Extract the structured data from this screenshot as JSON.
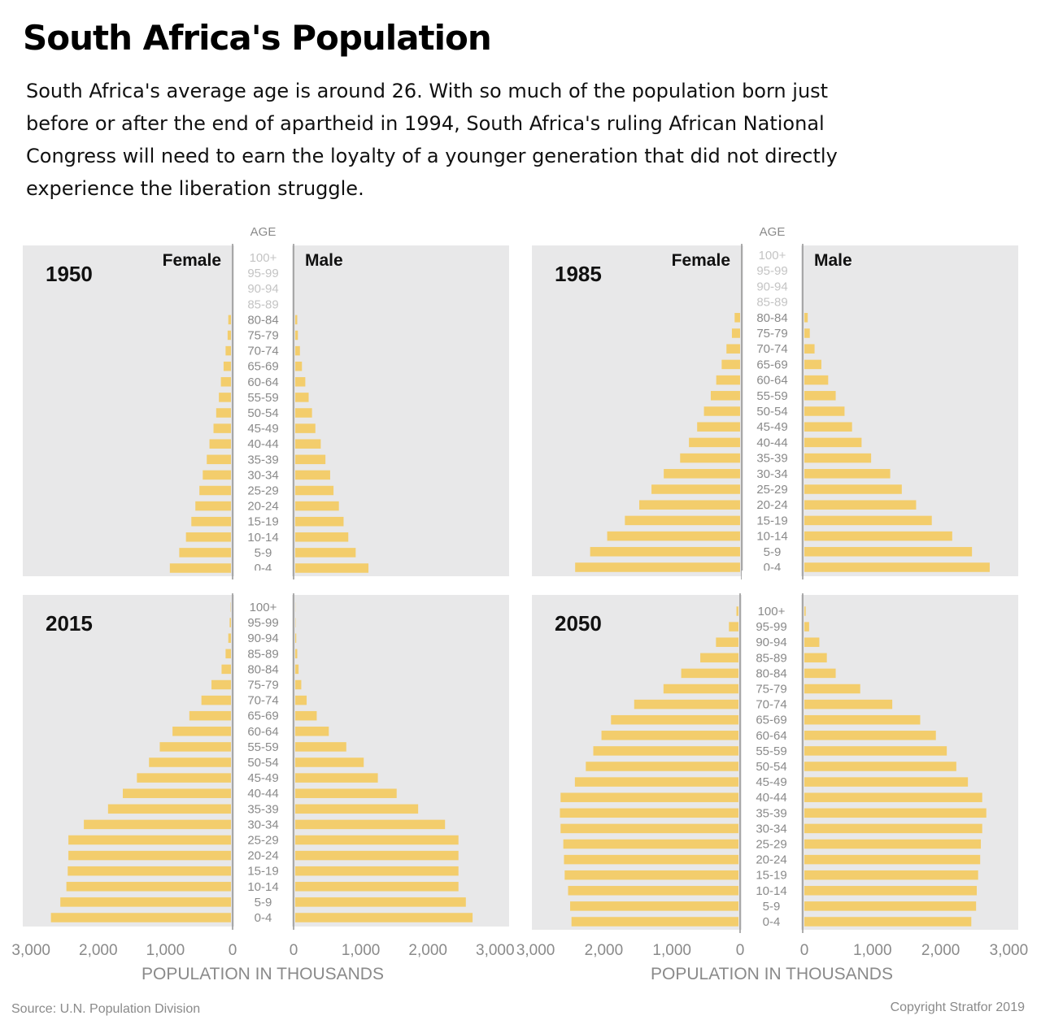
{
  "title": "South Africa's Population",
  "subtitle": "South Africa's average age is around 26. With so much of the population born just before or after the end of apartheid in 1994, South Africa's ruling African National Congress will need to earn the loyalty of a younger generation that did not directly experience the liberation struggle.",
  "source": "Source: U.N. Population Division",
  "copyright": "Copyright Stratfor 2019",
  "colors": {
    "bar": "#f3cd6c",
    "panel": "#e8e8e9",
    "axis": "#8c8c8c",
    "label": "#8a8a8a"
  },
  "chart_data": [
    {
      "type": "bar",
      "title": "1950",
      "age_header": "AGE",
      "left_label": "Female",
      "right_label": "Male",
      "xlabel": "POPULATION IN THOUSANDS",
      "xlim": [
        0,
        3000
      ],
      "xticks": [
        "3,000",
        "2,000",
        "1,000",
        "0"
      ],
      "categories": [
        "100+",
        "95-99",
        "90-94",
        "85-89",
        "80-84",
        "75-79",
        "70-74",
        "65-69",
        "60-64",
        "55-59",
        "50-54",
        "45-49",
        "40-44",
        "35-39",
        "30-34",
        "25-29",
        "20-24",
        "15-19",
        "10-14",
        "5-9",
        "0-4"
      ],
      "series": [
        {
          "name": "Female",
          "values": [
            0,
            0,
            0,
            0,
            40,
            50,
            80,
            110,
            150,
            180,
            220,
            260,
            320,
            360,
            420,
            470,
            530,
            590,
            670,
            770,
            910
          ]
        },
        {
          "name": "Male",
          "values": [
            0,
            0,
            0,
            0,
            30,
            40,
            70,
            100,
            150,
            200,
            250,
            300,
            380,
            450,
            520,
            570,
            650,
            720,
            790,
            900,
            1090
          ]
        }
      ]
    },
    {
      "type": "bar",
      "title": "1985",
      "age_header": "AGE",
      "left_label": "Female",
      "right_label": "Male",
      "xlabel": "POPULATION IN THOUSANDS",
      "xlim": [
        0,
        3000
      ],
      "xticks": [
        "0",
        "1,000",
        "2,000",
        "3,000"
      ],
      "categories": [
        "100+",
        "95-99",
        "90-94",
        "85-89",
        "80-84",
        "75-79",
        "70-74",
        "65-69",
        "60-64",
        "55-59",
        "50-54",
        "45-49",
        "40-44",
        "35-39",
        "30-34",
        "25-29",
        "20-24",
        "15-19",
        "10-14",
        "5-9",
        "0-4"
      ],
      "series": [
        {
          "name": "Female",
          "values": [
            0,
            0,
            0,
            0,
            80,
            120,
            200,
            270,
            350,
            430,
            530,
            630,
            750,
            880,
            1120,
            1300,
            1480,
            1690,
            1950,
            2200,
            2420
          ]
        },
        {
          "name": "Male",
          "values": [
            0,
            0,
            0,
            0,
            50,
            80,
            150,
            250,
            350,
            460,
            590,
            700,
            840,
            980,
            1260,
            1430,
            1640,
            1870,
            2170,
            2460,
            2720
          ]
        }
      ]
    },
    {
      "type": "bar",
      "title": "2015",
      "age_header": "",
      "left_label": "",
      "right_label": "",
      "xlabel": "",
      "xlim": [
        0,
        3000
      ],
      "xticks": [],
      "categories": [
        "100+",
        "95-99",
        "90-94",
        "85-89",
        "80-84",
        "75-79",
        "70-74",
        "65-69",
        "60-64",
        "55-59",
        "50-54",
        "45-49",
        "40-44",
        "35-39",
        "30-34",
        "25-29",
        "20-24",
        "15-19",
        "10-14",
        "5-9",
        "0-4"
      ],
      "series": [
        {
          "name": "Female",
          "values": [
            5,
            20,
            40,
            80,
            140,
            290,
            440,
            620,
            870,
            1060,
            1220,
            1400,
            1610,
            1830,
            2190,
            2420,
            2420,
            2430,
            2450,
            2540,
            2680
          ]
        },
        {
          "name": "Male",
          "values": [
            2,
            5,
            15,
            30,
            50,
            90,
            170,
            320,
            500,
            760,
            1020,
            1230,
            1510,
            1830,
            2230,
            2430,
            2430,
            2430,
            2430,
            2540,
            2640
          ]
        }
      ]
    },
    {
      "type": "bar",
      "title": "2050",
      "age_header": "",
      "left_label": "",
      "right_label": "",
      "xlabel": "",
      "xlim": [
        0,
        3000
      ],
      "xticks": [],
      "categories": [
        "100+",
        "95-99",
        "90-94",
        "85-89",
        "80-84",
        "75-79",
        "70-74",
        "65-69",
        "60-64",
        "55-59",
        "50-54",
        "45-49",
        "40-44",
        "35-39",
        "30-34",
        "25-29",
        "20-24",
        "15-19",
        "10-14",
        "5-9",
        "0-4"
      ],
      "series": [
        {
          "name": "Female",
          "values": [
            30,
            140,
            330,
            560,
            840,
            1100,
            1530,
            1870,
            2010,
            2130,
            2240,
            2400,
            2610,
            2620,
            2610,
            2570,
            2560,
            2550,
            2500,
            2470,
            2450
          ]
        },
        {
          "name": "Male",
          "values": [
            20,
            70,
            220,
            330,
            460,
            820,
            1290,
            1700,
            1930,
            2090,
            2230,
            2400,
            2610,
            2670,
            2610,
            2590,
            2580,
            2550,
            2530,
            2520,
            2450
          ]
        }
      ]
    }
  ],
  "bottom_axes": [
    {
      "ticks": [
        "3,000",
        "2,000",
        "1,000",
        "0",
        "0",
        "1,000",
        "2,000",
        "3,000"
      ],
      "label": "POPULATION IN THOUSANDS"
    },
    {
      "ticks": [
        "3,000",
        "2,000",
        "1,000",
        "0",
        "0",
        "1,000",
        "2,000",
        "3,000"
      ],
      "label": "POPULATION IN THOUSANDS"
    }
  ]
}
